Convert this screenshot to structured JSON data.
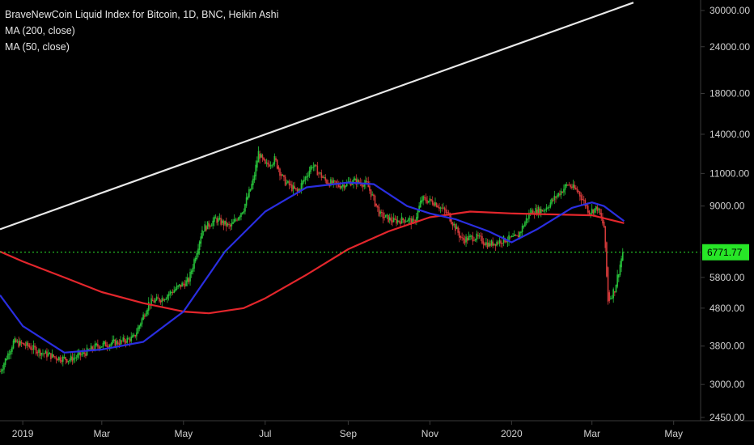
{
  "legend": {
    "title": "BraveNewCoin Liquid Index for Bitcoin, 1D, BNC, Heikin Ashi",
    "ma200": "MA (200, close)",
    "ma50": "MA (50, close)"
  },
  "colors": {
    "background": "#000000",
    "up_candle": "#27c13a",
    "down_candle": "#d43a3a",
    "ma200": "#e3262c",
    "ma50": "#2a2ee0",
    "trendline": "#e8e8e8",
    "price_line": "#2ee82e",
    "price_badge": "#27e627",
    "axis_line": "#3a3a3a",
    "axis_text": "#d0d0d0"
  },
  "chart_data": {
    "type": "line",
    "scale": "log",
    "grid": false,
    "legend_placement": "top-left",
    "yticks": [
      "30000.00",
      "24000.00",
      "18000.00",
      "14000.00",
      "11000.00",
      "9000.00",
      "6771.77",
      "5800.00",
      "4800.00",
      "3800.00",
      "3000.00",
      "2450.00"
    ],
    "ytick_values": [
      30000,
      24000,
      18000,
      14000,
      11000,
      9000,
      5800,
      4800,
      3800,
      3000,
      2450
    ],
    "ylim": [
      2400,
      32000
    ],
    "xticks": [
      "2019",
      "Mar",
      "May",
      "Jul",
      "Sep",
      "Nov",
      "2020",
      "Mar",
      "May"
    ],
    "xtick_dates": [
      "2019-01-01",
      "2019-03-01",
      "2019-05-01",
      "2019-07-01",
      "2019-09-01",
      "2019-11-01",
      "2020-01-01",
      "2020-03-01",
      "2020-05-01"
    ],
    "xlim": [
      "2018-12-15",
      "2020-06-30"
    ],
    "last_price": 6771.77,
    "series": [
      {
        "name": "BraveNewCoin Liquid Index for Bitcoin",
        "kind": "candles",
        "points": [
          [
            "2018-12-15",
            3250
          ],
          [
            "2018-12-25",
            3900
          ],
          [
            "2019-01-05",
            3800
          ],
          [
            "2019-01-15",
            3650
          ],
          [
            "2019-01-25",
            3550
          ],
          [
            "2019-02-05",
            3500
          ],
          [
            "2019-02-15",
            3620
          ],
          [
            "2019-02-25",
            3800
          ],
          [
            "2019-03-05",
            3850
          ],
          [
            "2019-03-15",
            3900
          ],
          [
            "2019-03-25",
            4000
          ],
          [
            "2019-04-05",
            4950
          ],
          [
            "2019-04-15",
            5100
          ],
          [
            "2019-04-25",
            5400
          ],
          [
            "2019-05-05",
            5700
          ],
          [
            "2019-05-15",
            7800
          ],
          [
            "2019-05-25",
            8300
          ],
          [
            "2019-06-05",
            7900
          ],
          [
            "2019-06-15",
            8900
          ],
          [
            "2019-06-22",
            10500
          ],
          [
            "2019-06-26",
            12500
          ],
          [
            "2019-07-01",
            11500
          ],
          [
            "2019-07-08",
            12000
          ],
          [
            "2019-07-15",
            10500
          ],
          [
            "2019-07-25",
            9800
          ],
          [
            "2019-08-05",
            11600
          ],
          [
            "2019-08-15",
            10500
          ],
          [
            "2019-08-25",
            10200
          ],
          [
            "2019-09-05",
            10500
          ],
          [
            "2019-09-15",
            10300
          ],
          [
            "2019-09-25",
            8500
          ],
          [
            "2019-10-05",
            8200
          ],
          [
            "2019-10-15",
            8300
          ],
          [
            "2019-10-20",
            8100
          ],
          [
            "2019-10-26",
            9400
          ],
          [
            "2019-11-05",
            9200
          ],
          [
            "2019-11-15",
            8500
          ],
          [
            "2019-11-25",
            7300
          ],
          [
            "2019-12-05",
            7450
          ],
          [
            "2019-12-15",
            7100
          ],
          [
            "2019-12-25",
            7300
          ],
          [
            "2020-01-05",
            7400
          ],
          [
            "2020-01-15",
            8700
          ],
          [
            "2020-01-25",
            8800
          ],
          [
            "2020-02-05",
            9700
          ],
          [
            "2020-02-12",
            10300
          ],
          [
            "2020-02-20",
            9800
          ],
          [
            "2020-02-28",
            8700
          ],
          [
            "2020-03-05",
            8900
          ],
          [
            "2020-03-10",
            7900
          ],
          [
            "2020-03-13",
            5000
          ],
          [
            "2020-03-18",
            5400
          ],
          [
            "2020-03-24",
            6771.77
          ]
        ]
      },
      {
        "name": "MA (200, close)",
        "kind": "line",
        "points": [
          [
            "2018-12-15",
            6800
          ],
          [
            "2019-01-01",
            6400
          ],
          [
            "2019-02-01",
            5800
          ],
          [
            "2019-03-01",
            5300
          ],
          [
            "2019-04-01",
            4950
          ],
          [
            "2019-05-01",
            4700
          ],
          [
            "2019-05-20",
            4650
          ],
          [
            "2019-06-15",
            4800
          ],
          [
            "2019-07-01",
            5100
          ],
          [
            "2019-08-01",
            5900
          ],
          [
            "2019-09-01",
            6900
          ],
          [
            "2019-10-01",
            7700
          ],
          [
            "2019-11-01",
            8400
          ],
          [
            "2019-12-01",
            8700
          ],
          [
            "2020-01-01",
            8600
          ],
          [
            "2020-02-01",
            8550
          ],
          [
            "2020-03-01",
            8500
          ],
          [
            "2020-03-25",
            8100
          ]
        ]
      },
      {
        "name": "MA (50, close)",
        "kind": "line",
        "points": [
          [
            "2018-12-15",
            5200
          ],
          [
            "2019-01-01",
            4300
          ],
          [
            "2019-02-01",
            3650
          ],
          [
            "2019-03-01",
            3720
          ],
          [
            "2019-04-01",
            3900
          ],
          [
            "2019-05-01",
            4700
          ],
          [
            "2019-06-01",
            6800
          ],
          [
            "2019-07-01",
            8700
          ],
          [
            "2019-08-01",
            10100
          ],
          [
            "2019-09-01",
            10400
          ],
          [
            "2019-09-20",
            10300
          ],
          [
            "2019-10-15",
            9000
          ],
          [
            "2019-11-01",
            8600
          ],
          [
            "2019-11-20",
            8300
          ],
          [
            "2019-12-15",
            7700
          ],
          [
            "2020-01-01",
            7200
          ],
          [
            "2020-01-20",
            7800
          ],
          [
            "2020-02-15",
            8900
          ],
          [
            "2020-03-01",
            9200
          ],
          [
            "2020-03-10",
            9000
          ],
          [
            "2020-03-25",
            8200
          ]
        ]
      },
      {
        "name": "",
        "kind": "trendline",
        "points": [
          [
            "2018-12-15",
            7800
          ],
          [
            "2020-04-01",
            31500
          ]
        ]
      }
    ]
  }
}
